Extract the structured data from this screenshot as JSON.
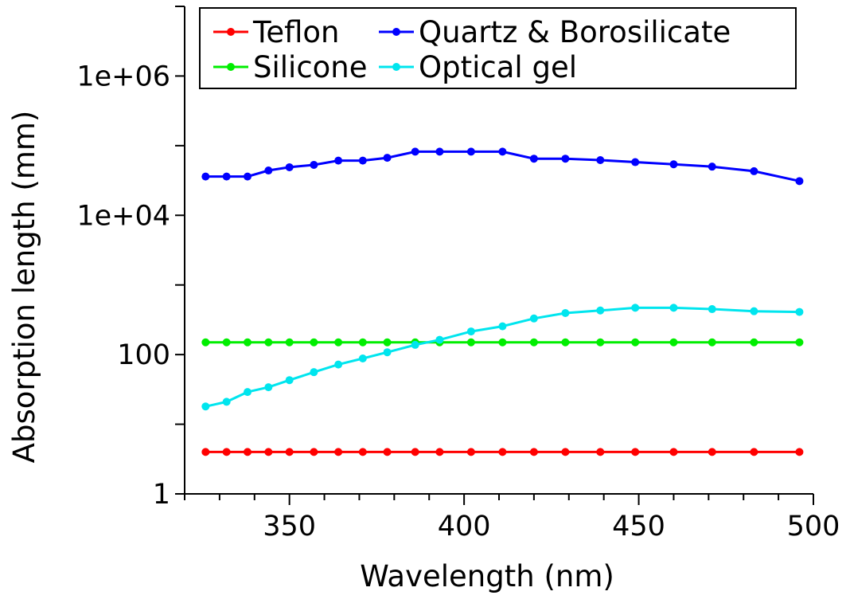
{
  "chart_data": {
    "type": "line",
    "title": "",
    "xlabel": "Wavelength (nm)",
    "ylabel": "Absorption length (mm)",
    "xlim": [
      320,
      500
    ],
    "ylim": [
      1,
      10000000
    ],
    "yscale": "log",
    "xticks": [
      350,
      400,
      450,
      500
    ],
    "xtick_labels": [
      "350",
      "400",
      "450",
      "500"
    ],
    "yticks": [
      1,
      100,
      10000,
      1000000
    ],
    "ytick_labels": [
      "1",
      "100",
      "1e+04",
      "1e+06"
    ],
    "grid": false,
    "legend_position": "top",
    "series": [
      {
        "name": "Teflon",
        "color": "#ff0000",
        "x": [
          326,
          332,
          338,
          344,
          350,
          357,
          364,
          371,
          378,
          386,
          393,
          402,
          411,
          420,
          429,
          439,
          449,
          460,
          471,
          483,
          496
        ],
        "y": [
          4,
          4,
          4,
          4,
          4,
          4,
          4,
          4,
          4,
          4,
          4,
          4,
          4,
          4,
          4,
          4,
          4,
          4,
          4,
          4,
          4
        ]
      },
      {
        "name": "Quartz & Borosilicate",
        "color": "#0000ff",
        "x": [
          326,
          332,
          338,
          344,
          350,
          357,
          364,
          371,
          378,
          386,
          393,
          402,
          411,
          420,
          429,
          439,
          449,
          460,
          471,
          483,
          496
        ],
        "y": [
          36000,
          36000,
          36000,
          44000,
          49000,
          53000,
          61000,
          61000,
          67000,
          82000,
          82000,
          82000,
          82000,
          65000,
          65000,
          62000,
          58000,
          54000,
          50000,
          43000,
          31000
        ]
      },
      {
        "name": "Silicone",
        "color": "#00ee00",
        "x": [
          326,
          332,
          338,
          344,
          350,
          357,
          364,
          371,
          378,
          386,
          393,
          402,
          411,
          420,
          429,
          439,
          449,
          460,
          471,
          483,
          496
        ],
        "y": [
          150,
          150,
          150,
          150,
          150,
          150,
          150,
          150,
          150,
          150,
          150,
          150,
          150,
          150,
          150,
          150,
          150,
          150,
          150,
          150,
          150
        ]
      },
      {
        "name": "Optical gel",
        "color": "#00e5ee",
        "x": [
          326,
          332,
          338,
          344,
          350,
          357,
          364,
          371,
          378,
          386,
          393,
          402,
          411,
          420,
          429,
          439,
          449,
          460,
          471,
          483,
          496
        ],
        "y": [
          18,
          21,
          29,
          34,
          43,
          56,
          72,
          88,
          108,
          138,
          163,
          215,
          255,
          330,
          395,
          430,
          470,
          470,
          450,
          420,
          410
        ]
      }
    ]
  }
}
